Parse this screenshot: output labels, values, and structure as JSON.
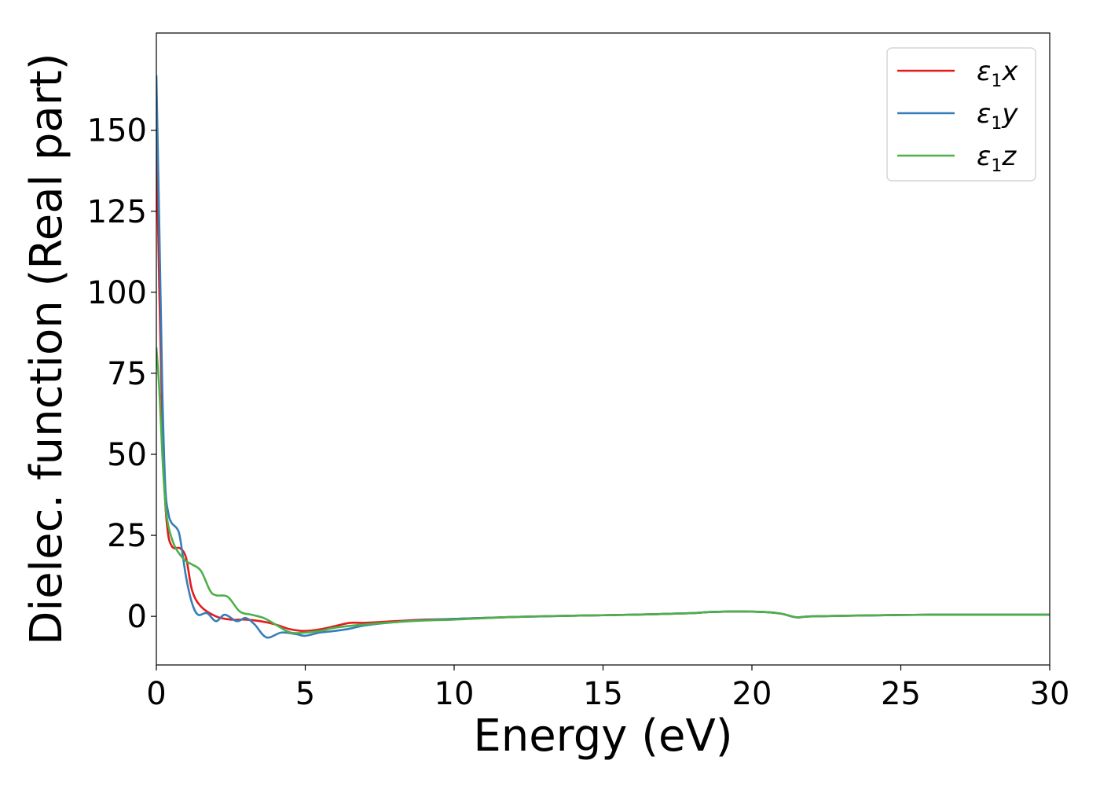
{
  "chart_data": {
    "type": "line",
    "xlabel": "Energy (eV)",
    "ylabel": "Dielec. function (Real part)",
    "xlim": [
      0,
      30
    ],
    "ylim": [
      -15,
      180
    ],
    "x_ticks": [
      0,
      5,
      10,
      15,
      20,
      25,
      30
    ],
    "y_ticks": [
      0,
      25,
      50,
      75,
      100,
      125,
      150
    ],
    "grid": false,
    "legend_position": "top-right",
    "series": [
      {
        "name": "ε1x",
        "legend": {
          "symbol": "ε",
          "sub": "1",
          "var": "x"
        },
        "color": "#e41a1c",
        "x": [
          0,
          0.1,
          0.2,
          0.3,
          0.4,
          0.5,
          0.6,
          0.8,
          1.0,
          1.2,
          1.5,
          2.0,
          2.5,
          3.0,
          3.5,
          4.0,
          4.5,
          5.0,
          5.5,
          6.0,
          6.5,
          7.0,
          8.0,
          9.0,
          10.0,
          12.0,
          14.0,
          16.0,
          18.0,
          18.5,
          19.5,
          20.5,
          21.0,
          21.5,
          22.0,
          24.0,
          26.0,
          28.0,
          30.0
        ],
        "values": [
          150,
          100,
          60,
          35,
          25,
          22,
          21,
          21,
          18,
          8,
          3,
          0,
          -1,
          -1,
          -1.5,
          -2.5,
          -4,
          -4.5,
          -4,
          -3,
          -2,
          -2,
          -1.5,
          -1,
          -0.8,
          -0.2,
          0.2,
          0.5,
          1,
          1.3,
          1.5,
          1.3,
          0.8,
          -0.3,
          0,
          0.3,
          0.5,
          0.5,
          0.5
        ]
      },
      {
        "name": "ε1y",
        "legend": {
          "symbol": "ε",
          "sub": "1",
          "var": "y"
        },
        "color": "#377eb8",
        "x": [
          0,
          0.1,
          0.2,
          0.3,
          0.4,
          0.5,
          0.7,
          0.8,
          1.0,
          1.2,
          1.4,
          1.7,
          2.0,
          2.3,
          2.7,
          3.0,
          3.3,
          3.7,
          4.2,
          4.7,
          5.0,
          5.5,
          6.0,
          6.5,
          7.0,
          8.0,
          9.0,
          10.0,
          12.0,
          14.0,
          16.0,
          18.0,
          18.5,
          19.5,
          20.5,
          21.0,
          21.5,
          22.0,
          24.0,
          26.0,
          28.0,
          30.0
        ],
        "values": [
          167,
          120,
          70,
          40,
          32,
          29,
          27,
          24,
          12,
          4,
          0.5,
          1,
          -1.5,
          0.5,
          -1.5,
          -0.5,
          -2.5,
          -6.5,
          -5,
          -5.5,
          -6,
          -5,
          -4.5,
          -3.8,
          -2.8,
          -1.8,
          -1.2,
          -0.8,
          -0.2,
          0.2,
          0.5,
          1,
          1.3,
          1.5,
          1.3,
          0.8,
          -0.3,
          0,
          0.3,
          0.5,
          0.5,
          0.5
        ]
      },
      {
        "name": "ε1z",
        "legend": {
          "symbol": "ε",
          "sub": "1",
          "var": "z"
        },
        "color": "#4daf4a",
        "x": [
          0,
          0.1,
          0.2,
          0.3,
          0.4,
          0.6,
          0.8,
          1.0,
          1.2,
          1.5,
          1.8,
          2.0,
          2.4,
          2.8,
          3.2,
          3.6,
          4.0,
          4.5,
          5.0,
          5.5,
          6.0,
          7.0,
          8.0,
          9.0,
          10.0,
          12.0,
          14.0,
          16.0,
          18.0,
          18.5,
          19.5,
          20.5,
          21.0,
          21.5,
          22.0,
          24.0,
          26.0,
          28.0,
          30.0
        ],
        "values": [
          83,
          70,
          50,
          35,
          28,
          22,
          19,
          17,
          16,
          14,
          8,
          6.5,
          6,
          1.5,
          0.5,
          -0.5,
          -2.5,
          -5,
          -5,
          -4.5,
          -3.5,
          -2.5,
          -1.8,
          -1.3,
          -1,
          -0.2,
          0.2,
          0.5,
          1,
          1.3,
          1.5,
          1.3,
          0.8,
          -0.3,
          0,
          0.3,
          0.5,
          0.5,
          0.5
        ]
      }
    ]
  }
}
